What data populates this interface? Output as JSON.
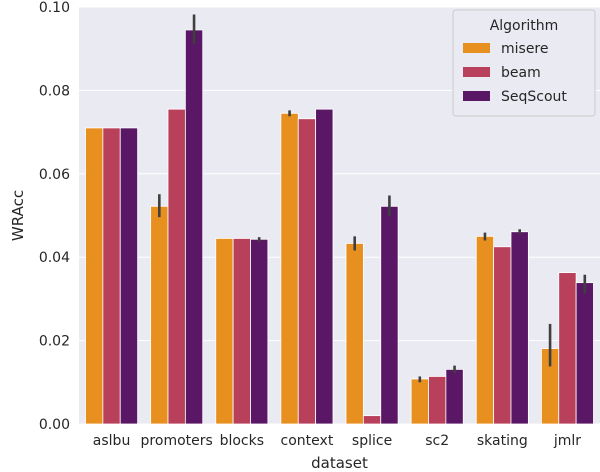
{
  "chart_data": {
    "type": "bar",
    "xlabel": "dataset",
    "ylabel": "WRAcc",
    "ylim": [
      0,
      0.1
    ],
    "yticks": [
      "0.00",
      "0.02",
      "0.04",
      "0.06",
      "0.08",
      "0.10"
    ],
    "grid": true,
    "legend": {
      "title": "Algorithm",
      "placement": "top-right"
    },
    "categories": [
      "aslbu",
      "promoters",
      "blocks",
      "context",
      "splice",
      "sc2",
      "skating",
      "jmlr"
    ],
    "series": [
      {
        "name": "misere",
        "color": "#E8901F",
        "values": [
          0.071,
          0.0522,
          0.0445,
          0.0745,
          0.0433,
          0.0108,
          0.045,
          0.0181
        ],
        "err_low": [
          0.071,
          0.0496,
          0.0445,
          0.0738,
          0.0416,
          0.01,
          0.044,
          0.0138
        ],
        "err_high": [
          0.071,
          0.0551,
          0.0445,
          0.0752,
          0.045,
          0.0114,
          0.0459,
          0.024
        ]
      },
      {
        "name": "beam",
        "color": "#B8405A",
        "values": [
          0.071,
          0.0755,
          0.0445,
          0.0732,
          0.002,
          0.0114,
          0.0425,
          0.0363
        ],
        "err_low": [
          0.071,
          0.0755,
          0.0445,
          0.0732,
          0.002,
          0.0114,
          0.0425,
          0.0363
        ],
        "err_high": [
          0.071,
          0.0755,
          0.0445,
          0.0732,
          0.002,
          0.0114,
          0.0425,
          0.0363
        ]
      },
      {
        "name": "SeqScout",
        "color": "#5A1765",
        "values": [
          0.071,
          0.0945,
          0.0443,
          0.0755,
          0.0522,
          0.0131,
          0.0461,
          0.0339
        ],
        "err_low": [
          0.071,
          0.0912,
          0.0437,
          0.0755,
          0.0498,
          0.0122,
          0.0455,
          0.0313
        ],
        "err_high": [
          0.071,
          0.0982,
          0.0448,
          0.0755,
          0.0548,
          0.014,
          0.0467,
          0.0358
        ]
      }
    ]
  }
}
